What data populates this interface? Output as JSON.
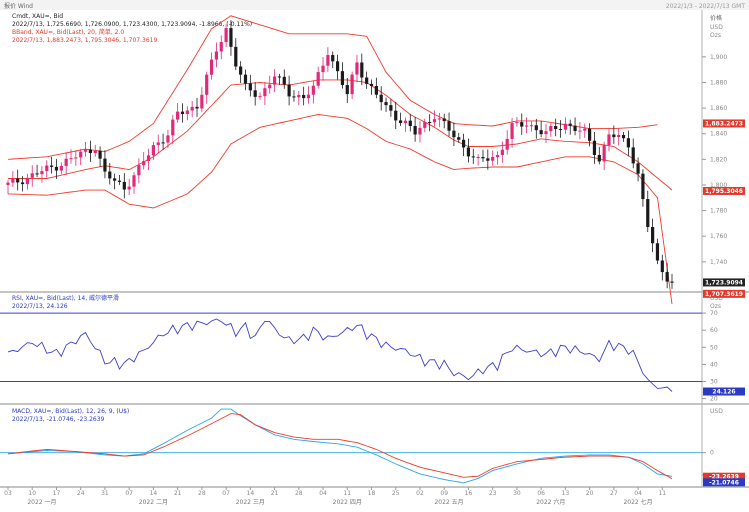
{
  "header": {
    "left": "报价 Wind",
    "right": "2022/1/3 - 2022/7/13 GMT"
  },
  "panels": {
    "price": {
      "title_line": "Cmdt, XAU=, Bid",
      "ohlc_line": "2022/7/13, 1,725.6690, 1,726.0900, 1,723.4300, 1,723.9094, -1.8966, (-0.11%)",
      "bb_line1": "BBand, XAU=, Bid(Last), 20, 简单, 2.0",
      "bb_line2": "2022/7/13, 1,883.2473, 1,795.3046, 1,707.3619",
      "unit_top": "价格",
      "unit_bottom": "USD",
      "unit_third": "Ozs",
      "yticks": [
        "1,900",
        "1,880",
        "1,860",
        "1,840",
        "1,820",
        "1,800",
        "1,780",
        "1,760",
        "1,740"
      ],
      "tags": [
        {
          "text": "1,883.2473",
          "color": "#e23a2d"
        },
        {
          "text": "1,795.3046",
          "color": "#e23a2d"
        },
        {
          "text": "1,723.9094",
          "color": "#222222"
        },
        {
          "text": "1,707.3619",
          "color": "#e23a2d"
        }
      ]
    },
    "rsi": {
      "title_line": "RSI, XAU=, Bid(Last), 14, 威尔德平滑",
      "value_line": "2022/7/13, 24.126",
      "unit_top": "USD",
      "unit_bottom": "Ozs",
      "yticks": [
        "70",
        "60",
        "50",
        "40",
        "30",
        "20"
      ],
      "tag": {
        "text": "24.126",
        "color": "#2b39c7"
      }
    },
    "macd": {
      "title_line": "MACD, XAU=, Bid(Last), 12, 26, 9, (U$)",
      "value_line": "2022/7/13, -21.0746, -23.2639",
      "unit_top": "USD",
      "yticks": [
        "0",
        "-20"
      ],
      "tags": [
        {
          "text": "-21.0746",
          "color": "#2b39c7"
        },
        {
          "text": "-23.2639",
          "color": "#e23a2d"
        }
      ]
    }
  },
  "xaxis": {
    "ticks": [
      "03",
      "10",
      "17",
      "24",
      "31",
      "07",
      "14",
      "21",
      "28",
      "07",
      "14",
      "21",
      "28",
      "04",
      "11",
      "18",
      "25",
      "02",
      "09",
      "16",
      "23",
      "30",
      "06",
      "13",
      "20",
      "27",
      "04",
      "11"
    ],
    "months": [
      {
        "label": "2022 一月",
        "i": 7
      },
      {
        "label": "2022 二月",
        "i": 30
      },
      {
        "label": "2022 三月",
        "i": 50
      },
      {
        "label": "2022 四月",
        "i": 70
      },
      {
        "label": "2022 五月",
        "i": 91
      },
      {
        "label": "2022 六月",
        "i": 112
      },
      {
        "label": "2022 七月",
        "i": 130
      }
    ]
  },
  "colors": {
    "up": "#e0297a",
    "down": "#1a1a1a",
    "band": "#ef3b2c",
    "rsi": "#3b3fd0",
    "macd": "#ef3b2c",
    "signal": "#2aa7e8",
    "ref": "#3b3fd0"
  },
  "chart_data": [
    {
      "type": "candlestick",
      "title": "Cmdt, XAU=, Bid",
      "ylabel": "USD",
      "ylim": [
        1718,
        1935
      ],
      "days": 137,
      "x_start": "2022-01-03",
      "x_end": "2022-07-13",
      "close_anchors": [
        [
          0,
          1800
        ],
        [
          8,
          1812
        ],
        [
          13,
          1820
        ],
        [
          18,
          1830
        ],
        [
          20,
          1808
        ],
        [
          24,
          1798
        ],
        [
          27,
          1812
        ],
        [
          30,
          1830
        ],
        [
          33,
          1840
        ],
        [
          35,
          1855
        ],
        [
          39,
          1862
        ],
        [
          43,
          1905
        ],
        [
          45,
          1922
        ],
        [
          47,
          1895
        ],
        [
          49,
          1875
        ],
        [
          52,
          1870
        ],
        [
          55,
          1885
        ],
        [
          58,
          1872
        ],
        [
          61,
          1868
        ],
        [
          63,
          1875
        ],
        [
          66,
          1905
        ],
        [
          70,
          1870
        ],
        [
          72,
          1896
        ],
        [
          74,
          1880
        ],
        [
          78,
          1860
        ],
        [
          82,
          1848
        ],
        [
          84,
          1840
        ],
        [
          88,
          1855
        ],
        [
          92,
          1838
        ],
        [
          94,
          1830
        ],
        [
          97,
          1818
        ],
        [
          101,
          1823
        ],
        [
          104,
          1845
        ],
        [
          107,
          1848
        ],
        [
          111,
          1840
        ],
        [
          115,
          1848
        ],
        [
          119,
          1840
        ],
        [
          122,
          1820
        ],
        [
          124,
          1840
        ],
        [
          128,
          1832
        ],
        [
          130,
          1808
        ],
        [
          132,
          1768
        ],
        [
          134,
          1738
        ],
        [
          137,
          1724
        ]
      ],
      "upper_anchors": [
        [
          0,
          1820
        ],
        [
          8,
          1822
        ],
        [
          16,
          1828
        ],
        [
          20,
          1826
        ],
        [
          25,
          1834
        ],
        [
          30,
          1848
        ],
        [
          37,
          1890
        ],
        [
          42,
          1922
        ],
        [
          46,
          1932
        ],
        [
          52,
          1925
        ],
        [
          58,
          1918
        ],
        [
          65,
          1918
        ],
        [
          70,
          1918
        ],
        [
          74,
          1916
        ],
        [
          78,
          1888
        ],
        [
          83,
          1866
        ],
        [
          88,
          1855
        ],
        [
          92,
          1848
        ],
        [
          95,
          1847
        ],
        [
          100,
          1846
        ],
        [
          105,
          1850
        ],
        [
          110,
          1850
        ],
        [
          115,
          1847
        ],
        [
          120,
          1844
        ],
        [
          125,
          1844
        ],
        [
          130,
          1845
        ],
        [
          134,
          1847
        ]
      ],
      "mid_anchors": [
        [
          0,
          1805
        ],
        [
          8,
          1805
        ],
        [
          16,
          1812
        ],
        [
          20,
          1815
        ],
        [
          25,
          1812
        ],
        [
          30,
          1822
        ],
        [
          37,
          1842
        ],
        [
          42,
          1862
        ],
        [
          46,
          1878
        ],
        [
          52,
          1880
        ],
        [
          58,
          1878
        ],
        [
          64,
          1882
        ],
        [
          70,
          1882
        ],
        [
          74,
          1880
        ],
        [
          78,
          1870
        ],
        [
          83,
          1855
        ],
        [
          88,
          1845
        ],
        [
          92,
          1835
        ],
        [
          95,
          1830
        ],
        [
          100,
          1830
        ],
        [
          105,
          1832
        ],
        [
          110,
          1836
        ],
        [
          115,
          1834
        ],
        [
          120,
          1833
        ],
        [
          125,
          1830
        ],
        [
          130,
          1818
        ],
        [
          137,
          1796
        ]
      ],
      "lower_anchors": [
        [
          0,
          1793
        ],
        [
          8,
          1792
        ],
        [
          16,
          1796
        ],
        [
          20,
          1796
        ],
        [
          25,
          1785
        ],
        [
          30,
          1782
        ],
        [
          37,
          1793
        ],
        [
          42,
          1810
        ],
        [
          46,
          1832
        ],
        [
          52,
          1845
        ],
        [
          58,
          1850
        ],
        [
          64,
          1855
        ],
        [
          70,
          1852
        ],
        [
          74,
          1844
        ],
        [
          78,
          1834
        ],
        [
          83,
          1828
        ],
        [
          88,
          1818
        ],
        [
          92,
          1812
        ],
        [
          95,
          1813
        ],
        [
          100,
          1814
        ],
        [
          105,
          1814
        ],
        [
          110,
          1818
        ],
        [
          115,
          1822
        ],
        [
          120,
          1822
        ],
        [
          125,
          1818
        ],
        [
          130,
          1808
        ],
        [
          134,
          1790
        ],
        [
          137,
          1707
        ]
      ],
      "series": [
        {
          "name": "BBand Upper",
          "last": 1883.2473
        },
        {
          "name": "BBand Middle",
          "last": 1795.3046
        },
        {
          "name": "BBand Lower",
          "last": 1707.3619
        },
        {
          "name": "XAU= Bid",
          "last": 1723.9094
        }
      ]
    },
    {
      "type": "line",
      "title": "RSI, XAU=, Bid(Last), 14",
      "ylim": [
        18,
        80
      ],
      "reference_lines": [
        70,
        30
      ],
      "anchors": [
        [
          0,
          46
        ],
        [
          5,
          53
        ],
        [
          10,
          46
        ],
        [
          16,
          58
        ],
        [
          20,
          42
        ],
        [
          24,
          40
        ],
        [
          28,
          48
        ],
        [
          32,
          58
        ],
        [
          36,
          62
        ],
        [
          40,
          64
        ],
        [
          44,
          66
        ],
        [
          47,
          59
        ],
        [
          49,
          62
        ],
        [
          51,
          55
        ],
        [
          53,
          67
        ],
        [
          56,
          58
        ],
        [
          58,
          54
        ],
        [
          61,
          55
        ],
        [
          63,
          60
        ],
        [
          66,
          55
        ],
        [
          70,
          60
        ],
        [
          72,
          63
        ],
        [
          74,
          58
        ],
        [
          78,
          51
        ],
        [
          82,
          48
        ],
        [
          86,
          42
        ],
        [
          90,
          40
        ],
        [
          92,
          35
        ],
        [
          95,
          32
        ],
        [
          98,
          37
        ],
        [
          101,
          40
        ],
        [
          104,
          50
        ],
        [
          107,
          48
        ],
        [
          111,
          46
        ],
        [
          115,
          50
        ],
        [
          119,
          47
        ],
        [
          122,
          43
        ],
        [
          124,
          52
        ],
        [
          128,
          49
        ],
        [
          130,
          42
        ],
        [
          132,
          30
        ],
        [
          134,
          27
        ],
        [
          137,
          24.1
        ]
      ],
      "last": 24.126
    },
    {
      "type": "line",
      "title": "MACD, XAU=, Bid(Last), 12, 26, 9",
      "ylim": [
        -28,
        40
      ],
      "reference_lines": [
        0
      ],
      "series": [
        {
          "name": "MACD",
          "anchors": [
            [
              0,
              -1
            ],
            [
              8,
              3
            ],
            [
              14,
              1
            ],
            [
              20,
              -1
            ],
            [
              24,
              -3
            ],
            [
              28,
              -2
            ],
            [
              32,
              5
            ],
            [
              37,
              15
            ],
            [
              42,
              26
            ],
            [
              46,
              35
            ],
            [
              48,
              34
            ],
            [
              51,
              25
            ],
            [
              55,
              18
            ],
            [
              59,
              14
            ],
            [
              63,
              12
            ],
            [
              68,
              12
            ],
            [
              72,
              9
            ],
            [
              76,
              3
            ],
            [
              80,
              -5
            ],
            [
              85,
              -13
            ],
            [
              90,
              -18
            ],
            [
              94,
              -22
            ],
            [
              97,
              -21
            ],
            [
              100,
              -14
            ],
            [
              105,
              -8
            ],
            [
              110,
              -6
            ],
            [
              115,
              -4
            ],
            [
              120,
              -3
            ],
            [
              124,
              -3
            ],
            [
              128,
              -4
            ],
            [
              131,
              -8
            ],
            [
              134,
              -16
            ],
            [
              137,
              -23.26
            ]
          ],
          "last": -23.2639
        },
        {
          "name": "Signal",
          "anchors": [
            [
              0,
              -1
            ],
            [
              8,
              2
            ],
            [
              14,
              1
            ],
            [
              20,
              -2
            ],
            [
              24,
              -3
            ],
            [
              28,
              -1
            ],
            [
              32,
              8
            ],
            [
              37,
              20
            ],
            [
              42,
              31
            ],
            [
              44,
              39
            ],
            [
              46,
              39
            ],
            [
              48,
              33
            ],
            [
              51,
              25
            ],
            [
              55,
              16
            ],
            [
              59,
              12
            ],
            [
              63,
              10
            ],
            [
              68,
              8
            ],
            [
              72,
              5
            ],
            [
              76,
              -2
            ],
            [
              80,
              -10
            ],
            [
              85,
              -19
            ],
            [
              90,
              -24
            ],
            [
              94,
              -27
            ],
            [
              97,
              -23
            ],
            [
              100,
              -16
            ],
            [
              105,
              -10
            ],
            [
              110,
              -5
            ],
            [
              115,
              -3
            ],
            [
              120,
              -2
            ],
            [
              124,
              -2
            ],
            [
              128,
              -4
            ],
            [
              131,
              -10
            ],
            [
              134,
              -19
            ],
            [
              137,
              -21.07
            ]
          ],
          "last": -21.0746
        }
      ]
    }
  ]
}
